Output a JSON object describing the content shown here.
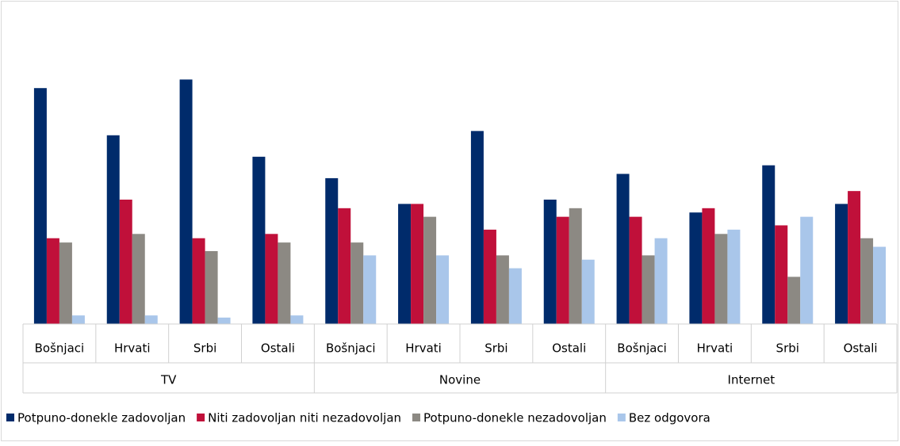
{
  "chart_data": {
    "type": "bar",
    "categories": [
      "Bošnjaci",
      "Hrvati",
      "Srbi",
      "Ostali",
      "Bošnjaci",
      "Hrvati",
      "Srbi",
      "Ostali",
      "Bošnjaci",
      "Hrvati",
      "Srbi",
      "Ostali"
    ],
    "groups": [
      "TV",
      "Novine",
      "Internet"
    ],
    "series": [
      {
        "name": "Potpuno-donekle zadovoljan",
        "color": "#002b6b",
        "values": [
          55,
          44,
          57,
          39,
          34,
          28,
          45,
          29,
          35,
          26,
          37,
          28
        ]
      },
      {
        "name": "Niti zadovoljan niti nezadovoljan",
        "color": "#c0103a",
        "values": [
          20,
          29,
          20,
          21,
          27,
          28,
          22,
          25,
          25,
          27,
          23,
          31
        ]
      },
      {
        "name": "Potpuno-donekle nezadovoljan",
        "color": "#8c8983",
        "values": [
          19,
          21,
          17,
          19,
          19,
          25,
          16,
          27,
          16,
          21,
          11,
          20
        ]
      },
      {
        "name": "Bez odgovora",
        "color": "#a9c6ea",
        "values": [
          2,
          2,
          1.5,
          2,
          16,
          16,
          13,
          15,
          20,
          22,
          25,
          18
        ]
      }
    ],
    "ylim": [
      0,
      70
    ]
  }
}
